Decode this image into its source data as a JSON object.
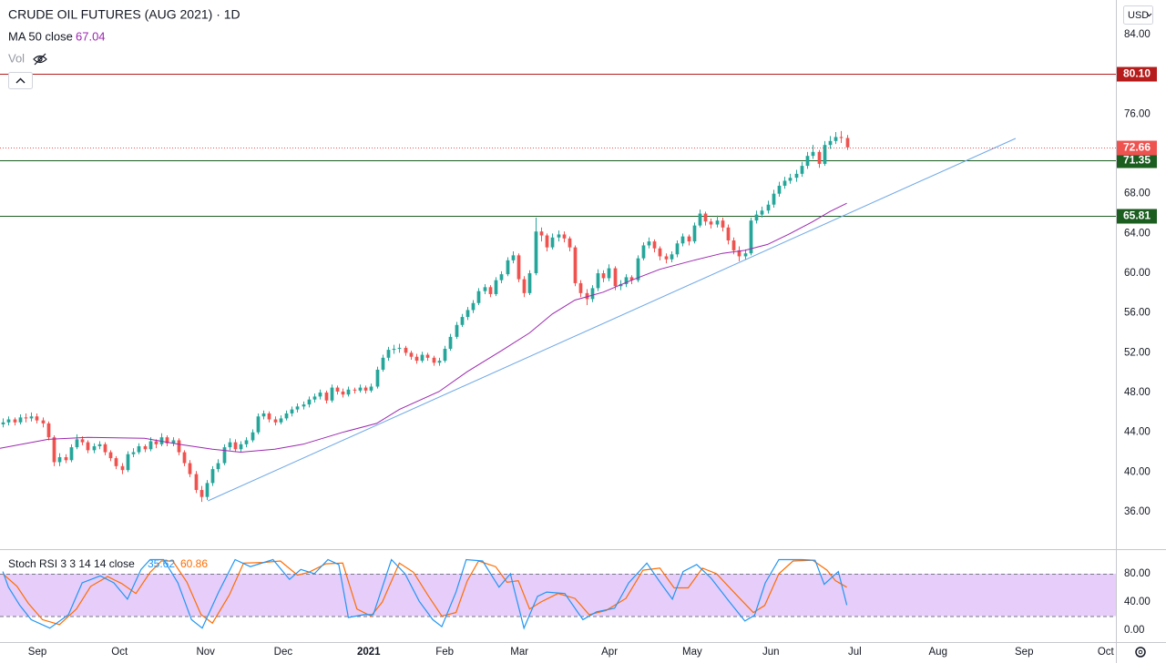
{
  "chart_data": {
    "type": "candlestick",
    "title": "CRUDE OIL FUTURES (AUG 2021) · 1D",
    "currency": "USD",
    "volume_label": "Vol",
    "xlim": [
      -0.5,
      196.5
    ],
    "xticks": [
      {
        "value": 6.1,
        "label": "Sep"
      },
      {
        "value": 20.6,
        "label": "Oct"
      },
      {
        "value": 35.8,
        "label": "Nov"
      },
      {
        "value": 49.5,
        "label": "Dec"
      },
      {
        "value": 64.6,
        "label": "2021"
      },
      {
        "value": 78.0,
        "label": "Feb"
      },
      {
        "value": 91.2,
        "label": "Mar"
      },
      {
        "value": 107.1,
        "label": "Apr"
      },
      {
        "value": 121.7,
        "label": "May"
      },
      {
        "value": 135.6,
        "label": "Jun"
      },
      {
        "value": 150.4,
        "label": "Jul"
      },
      {
        "value": 165.1,
        "label": "Aug"
      },
      {
        "value": 180.3,
        "label": "Sep"
      },
      {
        "value": 194.7,
        "label": "Oct"
      }
    ],
    "ylim": [
      32.25,
      87.48
    ],
    "yticks": [
      {
        "value": 36,
        "label": "36.00"
      },
      {
        "value": 40,
        "label": "40.00"
      },
      {
        "value": 44,
        "label": "44.00"
      },
      {
        "value": 48,
        "label": "48.00"
      },
      {
        "value": 52,
        "label": "52.00"
      },
      {
        "value": 56,
        "label": "56.00"
      },
      {
        "value": 60,
        "label": "60.00"
      },
      {
        "value": 64,
        "label": "64.00"
      },
      {
        "value": 68,
        "label": "68.00"
      },
      {
        "value": 76,
        "label": "76.00"
      },
      {
        "value": 84,
        "label": "84.00"
      }
    ],
    "up_color": "#26a69a",
    "down_color": "#ef5350",
    "candles": [
      [
        44.8,
        45.4,
        44.5,
        45.0
      ],
      [
        45.0,
        45.6,
        44.7,
        45.3
      ],
      [
        45.3,
        45.5,
        44.7,
        45.0
      ],
      [
        45.0,
        45.8,
        44.8,
        45.5
      ],
      [
        45.5,
        45.9,
        45.0,
        45.4
      ],
      [
        45.4,
        46.0,
        45.1,
        45.6
      ],
      [
        45.6,
        45.9,
        44.9,
        45.2
      ],
      [
        45.2,
        45.5,
        44.5,
        44.9
      ],
      [
        44.9,
        45.1,
        43.2,
        43.5
      ],
      [
        43.5,
        43.7,
        40.6,
        41.0
      ],
      [
        41.0,
        41.9,
        40.6,
        41.5
      ],
      [
        41.5,
        41.8,
        40.9,
        41.2
      ],
      [
        41.2,
        42.8,
        41.0,
        42.5
      ],
      [
        42.5,
        43.8,
        42.3,
        43.3
      ],
      [
        43.3,
        43.6,
        42.7,
        43.0
      ],
      [
        43.0,
        43.2,
        41.9,
        42.2
      ],
      [
        42.2,
        42.9,
        41.9,
        42.6
      ],
      [
        42.6,
        43.1,
        42.3,
        42.8
      ],
      [
        42.8,
        43.0,
        41.7,
        42.0
      ],
      [
        42.0,
        42.2,
        41.1,
        41.4
      ],
      [
        41.4,
        41.6,
        40.3,
        40.6
      ],
      [
        40.6,
        40.9,
        39.8,
        40.2
      ],
      [
        40.2,
        42.1,
        40.0,
        41.8
      ],
      [
        41.8,
        42.4,
        41.5,
        42.0
      ],
      [
        42.0,
        42.9,
        41.8,
        42.6
      ],
      [
        42.6,
        42.8,
        42.0,
        42.3
      ],
      [
        42.3,
        43.5,
        42.1,
        43.1
      ],
      [
        43.1,
        43.3,
        42.4,
        42.8
      ],
      [
        42.8,
        43.9,
        42.6,
        43.5
      ],
      [
        43.5,
        43.7,
        42.6,
        42.9
      ],
      [
        42.9,
        43.5,
        42.6,
        43.2
      ],
      [
        43.2,
        43.4,
        41.7,
        42.0
      ],
      [
        42.0,
        42.2,
        40.6,
        40.9
      ],
      [
        40.9,
        41.2,
        39.5,
        39.8
      ],
      [
        39.8,
        40.1,
        37.9,
        38.2
      ],
      [
        38.2,
        38.6,
        37.0,
        37.5
      ],
      [
        37.5,
        39.2,
        37.2,
        38.9
      ],
      [
        38.9,
        40.6,
        38.6,
        40.3
      ],
      [
        40.3,
        41.3,
        40.0,
        40.9
      ],
      [
        40.9,
        42.8,
        40.7,
        42.5
      ],
      [
        42.5,
        43.4,
        42.2,
        43.0
      ],
      [
        43.0,
        43.3,
        42.0,
        42.3
      ],
      [
        42.3,
        43.1,
        42.0,
        42.8
      ],
      [
        42.8,
        43.5,
        42.5,
        43.2
      ],
      [
        43.2,
        44.3,
        43.0,
        44.0
      ],
      [
        44.0,
        45.9,
        43.8,
        45.6
      ],
      [
        45.6,
        46.2,
        45.3,
        45.9
      ],
      [
        45.9,
        46.1,
        45.0,
        45.3
      ],
      [
        45.3,
        45.6,
        44.7,
        45.0
      ],
      [
        45.0,
        45.7,
        44.8,
        45.4
      ],
      [
        45.4,
        46.2,
        45.2,
        45.9
      ],
      [
        45.9,
        46.6,
        45.6,
        46.3
      ],
      [
        46.3,
        46.9,
        46.0,
        46.6
      ],
      [
        46.6,
        47.1,
        46.3,
        46.8
      ],
      [
        46.8,
        47.6,
        46.5,
        47.3
      ],
      [
        47.3,
        47.9,
        47.0,
        47.6
      ],
      [
        47.6,
        48.3,
        47.3,
        48.0
      ],
      [
        48.0,
        48.2,
        46.9,
        47.2
      ],
      [
        47.2,
        48.8,
        47.0,
        48.5
      ],
      [
        48.5,
        48.7,
        47.8,
        48.1
      ],
      [
        48.1,
        48.4,
        47.5,
        47.8
      ],
      [
        47.8,
        48.6,
        47.6,
        48.3
      ],
      [
        48.3,
        48.5,
        47.9,
        48.2
      ],
      [
        48.2,
        48.8,
        48.0,
        48.5
      ],
      [
        48.5,
        48.7,
        47.9,
        48.2
      ],
      [
        48.2,
        48.9,
        48.0,
        48.6
      ],
      [
        48.6,
        50.6,
        48.4,
        50.3
      ],
      [
        50.3,
        51.8,
        50.1,
        51.5
      ],
      [
        51.5,
        52.6,
        51.2,
        52.3
      ],
      [
        52.3,
        52.8,
        51.9,
        52.4
      ],
      [
        52.4,
        52.9,
        52.0,
        52.5
      ],
      [
        52.5,
        52.7,
        51.7,
        52.0
      ],
      [
        52.0,
        52.2,
        51.3,
        51.6
      ],
      [
        51.6,
        51.9,
        50.9,
        51.2
      ],
      [
        51.2,
        52.1,
        51.0,
        51.8
      ],
      [
        51.8,
        52.0,
        51.2,
        51.5
      ],
      [
        51.5,
        51.7,
        50.7,
        51.0
      ],
      [
        51.0,
        51.5,
        50.7,
        51.2
      ],
      [
        51.2,
        52.7,
        51.0,
        52.4
      ],
      [
        52.4,
        53.9,
        52.2,
        53.6
      ],
      [
        53.6,
        55.1,
        53.4,
        54.8
      ],
      [
        54.8,
        55.9,
        54.6,
        55.6
      ],
      [
        55.6,
        56.6,
        55.3,
        56.3
      ],
      [
        56.3,
        57.3,
        56.0,
        57.0
      ],
      [
        57.0,
        58.5,
        56.8,
        58.2
      ],
      [
        58.2,
        58.9,
        57.9,
        58.6
      ],
      [
        58.6,
        58.8,
        57.6,
        57.9
      ],
      [
        57.9,
        59.6,
        57.7,
        59.3
      ],
      [
        59.3,
        60.2,
        59.0,
        59.9
      ],
      [
        59.9,
        61.6,
        59.7,
        61.3
      ],
      [
        61.3,
        62.2,
        61.0,
        61.8
      ],
      [
        61.8,
        62.0,
        59.1,
        59.4
      ],
      [
        59.4,
        59.7,
        57.6,
        58.0
      ],
      [
        58.0,
        60.3,
        57.8,
        60.0
      ],
      [
        60.0,
        65.6,
        59.8,
        64.2
      ],
      [
        64.2,
        64.6,
        63.2,
        63.8
      ],
      [
        63.8,
        64.0,
        62.2,
        62.6
      ],
      [
        62.6,
        64.0,
        62.4,
        63.6
      ],
      [
        63.6,
        64.3,
        63.2,
        63.9
      ],
      [
        63.9,
        64.2,
        63.1,
        63.5
      ],
      [
        63.5,
        63.7,
        62.2,
        62.6
      ],
      [
        62.6,
        62.8,
        58.7,
        59.0
      ],
      [
        59.0,
        59.3,
        57.6,
        58.0
      ],
      [
        58.0,
        58.4,
        56.8,
        57.4
      ],
      [
        57.4,
        58.8,
        57.1,
        58.5
      ],
      [
        58.5,
        60.4,
        58.2,
        60.0
      ],
      [
        60.0,
        60.3,
        59.1,
        59.5
      ],
      [
        59.5,
        60.9,
        59.2,
        60.5
      ],
      [
        60.5,
        60.7,
        58.3,
        58.7
      ],
      [
        58.7,
        59.3,
        58.3,
        58.9
      ],
      [
        58.9,
        59.9,
        58.6,
        59.6
      ],
      [
        59.6,
        59.8,
        58.9,
        59.3
      ],
      [
        59.3,
        61.8,
        59.1,
        61.5
      ],
      [
        61.5,
        63.1,
        61.3,
        62.8
      ],
      [
        62.8,
        63.6,
        62.5,
        63.2
      ],
      [
        63.2,
        63.4,
        62.1,
        62.5
      ],
      [
        62.5,
        62.7,
        61.3,
        61.7
      ],
      [
        61.7,
        62.0,
        61.0,
        61.4
      ],
      [
        61.4,
        62.2,
        61.1,
        61.9
      ],
      [
        61.9,
        63.3,
        61.6,
        63.0
      ],
      [
        63.0,
        64.0,
        62.7,
        63.7
      ],
      [
        63.7,
        63.9,
        62.8,
        63.2
      ],
      [
        63.2,
        65.1,
        63.0,
        64.8
      ],
      [
        64.8,
        66.4,
        64.6,
        66.0
      ],
      [
        66.0,
        66.2,
        64.8,
        65.2
      ],
      [
        65.2,
        65.5,
        64.5,
        64.9
      ],
      [
        64.9,
        65.8,
        64.6,
        65.3
      ],
      [
        65.3,
        65.6,
        64.2,
        64.6
      ],
      [
        64.6,
        64.9,
        62.9,
        63.3
      ],
      [
        63.3,
        63.6,
        61.9,
        62.3
      ],
      [
        62.3,
        62.7,
        61.2,
        61.7
      ],
      [
        61.7,
        62.4,
        61.4,
        62.0
      ],
      [
        62.0,
        65.6,
        61.8,
        65.3
      ],
      [
        65.3,
        66.3,
        65.0,
        65.9
      ],
      [
        65.9,
        66.7,
        65.6,
        66.3
      ],
      [
        66.3,
        67.3,
        66.0,
        66.9
      ],
      [
        66.9,
        68.4,
        66.6,
        68.0
      ],
      [
        68.0,
        69.2,
        67.7,
        68.8
      ],
      [
        68.8,
        69.7,
        68.5,
        69.3
      ],
      [
        69.3,
        70.0,
        69.0,
        69.6
      ],
      [
        69.6,
        70.4,
        69.2,
        70.0
      ],
      [
        70.0,
        71.2,
        69.7,
        70.8
      ],
      [
        70.8,
        72.2,
        70.5,
        71.8
      ],
      [
        71.8,
        72.9,
        71.5,
        72.2
      ],
      [
        72.2,
        72.4,
        70.6,
        71.0
      ],
      [
        71.0,
        73.3,
        70.8,
        72.9
      ],
      [
        72.9,
        73.8,
        72.5,
        73.3
      ],
      [
        73.3,
        74.2,
        73.0,
        73.7
      ],
      [
        73.7,
        74.3,
        73.1,
        73.6
      ],
      [
        73.6,
        73.9,
        72.4,
        72.66
      ]
    ],
    "ma": {
      "name": "MA 50 close",
      "color": "#9c27b0",
      "x": [
        -0.5,
        8,
        15,
        25,
        31,
        37,
        42,
        48,
        53,
        60,
        66,
        70,
        77,
        82,
        88,
        93,
        97,
        101,
        106,
        111,
        116,
        122,
        127,
        131,
        135,
        139,
        143,
        146,
        149
      ],
      "values": [
        42.4,
        43.3,
        43.5,
        43.4,
        42.8,
        42.3,
        42.0,
        42.3,
        42.8,
        44.0,
        44.9,
        46.3,
        48.1,
        50.1,
        52.2,
        54.0,
        55.9,
        57.3,
        58.1,
        59.3,
        60.4,
        61.3,
        62.0,
        62.3,
        62.9,
        64.0,
        65.2,
        66.2,
        67.04
      ]
    },
    "trendline": {
      "color": "#6fa8e6",
      "x": [
        36.2,
        178.8
      ],
      "values": [
        37.1,
        73.56
      ]
    },
    "levels": [
      {
        "value": 80.1,
        "label": "80.10",
        "color": "#b71c1c"
      },
      {
        "value": 71.35,
        "label": "71.35",
        "color": "#1b5e20"
      },
      {
        "value": 65.81,
        "label": "65.81",
        "color": "#1b5e20"
      }
    ],
    "stoch": {
      "name": "Stoch RSI 3 3 14 14 close",
      "ylim": [
        -16.8,
        113.5
      ],
      "yticks": [
        {
          "value": 0,
          "label": "0.00"
        },
        {
          "value": 40,
          "label": "40.00"
        },
        {
          "value": 80,
          "label": "80.00"
        }
      ],
      "band": [
        20,
        80
      ],
      "band_color": "#e6cdfa",
      "k": {
        "color": "#2196f3",
        "x": [
          0,
          1,
          3,
          5,
          8.3,
          11.6,
          14,
          17.2,
          19.6,
          22,
          24.4,
          26,
          28.4,
          30.9,
          33.3,
          35.2,
          38.1,
          41,
          43.7,
          47.7,
          50.6,
          52.6,
          55,
          57.4,
          59.3,
          61,
          63.8,
          65.4,
          68.6,
          71,
          73.5,
          75.9,
          77.5,
          80,
          81.8,
          84.7,
          87.6,
          89.6,
          90.4,
          92,
          94.4,
          96,
          99.2,
          102.4,
          104.8,
          108,
          110.5,
          113.7,
          116.1,
          118.2,
          120.1,
          122.5,
          125,
          128.2,
          131,
          132.7,
          134.6,
          137,
          141,
          143.4,
          145,
          147.5,
          149
        ],
        "values": [
          83,
          61,
          35,
          15,
          3,
          22,
          67,
          77,
          67,
          44,
          86,
          100,
          100,
          67,
          15,
          3,
          54,
          100,
          90,
          100,
          72,
          86,
          80,
          100,
          93,
          18,
          22,
          22,
          100,
          80,
          41,
          15,
          5,
          54,
          100,
          98,
          61,
          80,
          54,
          3,
          48,
          54,
          52,
          15,
          26,
          31,
          67,
          95,
          67,
          44,
          83,
          93,
          74,
          41,
          13,
          21,
          67,
          100,
          100,
          99,
          65,
          83,
          35.62
        ]
      },
      "d": {
        "color": "#ff6d00",
        "x": [
          0,
          2.5,
          4.5,
          7,
          10,
          13,
          15.5,
          18.5,
          21,
          23.5,
          26,
          28,
          30,
          32.5,
          35,
          37,
          40,
          42.5,
          46,
          49,
          52,
          54,
          57,
          60,
          62.5,
          65,
          67,
          70,
          72.5,
          75,
          77.5,
          80,
          82,
          84,
          87,
          89,
          91,
          93,
          95,
          98,
          101,
          103.5,
          106.5,
          110,
          113,
          116,
          118.5,
          121,
          123.5,
          126,
          129.5,
          132.5,
          134.5,
          137,
          139.5,
          143,
          145.5,
          147,
          149
        ],
        "values": [
          80,
          62,
          38,
          15,
          8,
          30,
          62,
          76,
          66,
          52,
          82,
          98,
          98,
          68,
          22,
          10,
          50,
          95,
          96,
          98,
          78,
          82,
          94,
          95,
          30,
          20,
          40,
          95,
          82,
          50,
          20,
          25,
          70,
          98,
          90,
          68,
          70,
          30,
          40,
          52,
          45,
          22,
          28,
          45,
          85,
          88,
          60,
          60,
          88,
          80,
          50,
          25,
          35,
          80,
          98,
          99,
          85,
          70,
          60.86
        ]
      }
    }
  }
}
